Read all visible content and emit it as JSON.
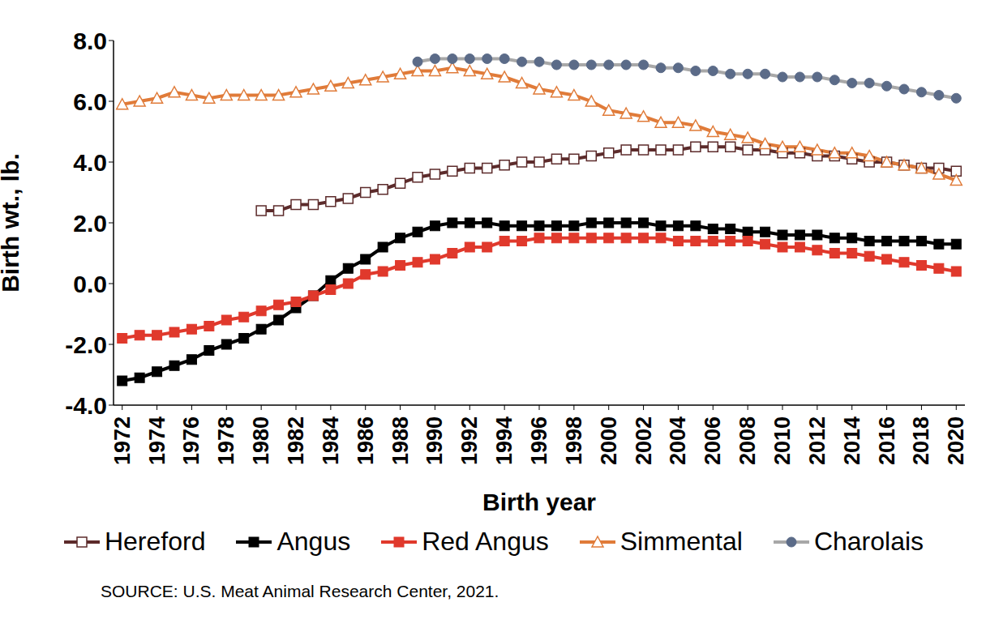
{
  "chart_data": {
    "type": "line",
    "source": "SOURCE: U.S. Meat Animal Research Center, 2021.",
    "x_label": "Birth year",
    "y_label": "Birth wt., lb.",
    "x": [
      1972,
      1973,
      1974,
      1975,
      1976,
      1977,
      1978,
      1979,
      1980,
      1981,
      1982,
      1983,
      1984,
      1985,
      1986,
      1987,
      1988,
      1989,
      1990,
      1991,
      1992,
      1993,
      1994,
      1995,
      1996,
      1997,
      1998,
      1999,
      2000,
      2001,
      2002,
      2003,
      2004,
      2005,
      2006,
      2007,
      2008,
      2009,
      2010,
      2011,
      2012,
      2013,
      2014,
      2015,
      2016,
      2017,
      2018,
      2019,
      2020
    ],
    "xlim": [
      1971.5,
      2020.5
    ],
    "xticks": [
      1972,
      1974,
      1976,
      1978,
      1980,
      1982,
      1984,
      1986,
      1988,
      1990,
      1992,
      1994,
      1996,
      1998,
      2000,
      2002,
      2004,
      2006,
      2008,
      2010,
      2012,
      2014,
      2016,
      2018,
      2020
    ],
    "ylim": [
      -4,
      8
    ],
    "yticks": [
      {
        "value": -4,
        "label": "-4.0"
      },
      {
        "value": -2,
        "label": "-2.0"
      },
      {
        "value": 0,
        "label": "0.0"
      },
      {
        "value": 2,
        "label": "2.0"
      },
      {
        "value": 4,
        "label": "4.0"
      },
      {
        "value": 6,
        "label": "6.0"
      },
      {
        "value": 8,
        "label": "8.0"
      }
    ],
    "grid": false,
    "legend": "bottom",
    "series": [
      {
        "name": "Hereford",
        "color": "#5c2b2b",
        "marker": "square_open",
        "values": [
          null,
          null,
          null,
          null,
          null,
          null,
          null,
          null,
          2.4,
          2.4,
          2.6,
          2.6,
          2.7,
          2.8,
          3.0,
          3.1,
          3.3,
          3.5,
          3.6,
          3.7,
          3.8,
          3.8,
          3.9,
          4.0,
          4.0,
          4.1,
          4.1,
          4.2,
          4.3,
          4.4,
          4.4,
          4.4,
          4.4,
          4.5,
          4.5,
          4.5,
          4.4,
          4.4,
          4.3,
          4.3,
          4.2,
          4.2,
          4.1,
          4.0,
          4.0,
          3.9,
          3.8,
          3.8,
          3.7
        ]
      },
      {
        "name": "Angus",
        "color": "#000000",
        "marker": "square",
        "values": [
          -3.2,
          -3.1,
          -2.9,
          -2.7,
          -2.5,
          -2.2,
          -2.0,
          -1.8,
          -1.5,
          -1.2,
          -0.8,
          -0.4,
          0.1,
          0.5,
          0.8,
          1.2,
          1.5,
          1.7,
          1.9,
          2.0,
          2.0,
          2.0,
          1.9,
          1.9,
          1.9,
          1.9,
          1.9,
          2.0,
          2.0,
          2.0,
          2.0,
          1.9,
          1.9,
          1.9,
          1.8,
          1.8,
          1.7,
          1.7,
          1.6,
          1.6,
          1.6,
          1.5,
          1.5,
          1.4,
          1.4,
          1.4,
          1.4,
          1.3,
          1.3
        ]
      },
      {
        "name": "Red Angus",
        "color": "#e0392c",
        "marker": "square",
        "values": [
          -1.8,
          -1.7,
          -1.7,
          -1.6,
          -1.5,
          -1.4,
          -1.2,
          -1.1,
          -0.9,
          -0.7,
          -0.6,
          -0.4,
          -0.2,
          0.0,
          0.3,
          0.4,
          0.6,
          0.7,
          0.8,
          1.0,
          1.2,
          1.2,
          1.4,
          1.4,
          1.5,
          1.5,
          1.5,
          1.5,
          1.5,
          1.5,
          1.5,
          1.5,
          1.4,
          1.4,
          1.4,
          1.4,
          1.4,
          1.3,
          1.2,
          1.2,
          1.1,
          1.0,
          1.0,
          0.9,
          0.8,
          0.7,
          0.6,
          0.5,
          0.4
        ]
      },
      {
        "name": "Simmental",
        "color": "#e07b39",
        "marker": "triangle_open",
        "values": [
          5.9,
          6.0,
          6.1,
          6.3,
          6.2,
          6.1,
          6.2,
          6.2,
          6.2,
          6.2,
          6.3,
          6.4,
          6.5,
          6.6,
          6.7,
          6.8,
          6.9,
          7.0,
          7.0,
          7.1,
          7.0,
          6.9,
          6.8,
          6.6,
          6.4,
          6.3,
          6.2,
          6.0,
          5.7,
          5.6,
          5.5,
          5.3,
          5.3,
          5.2,
          5.0,
          4.9,
          4.8,
          4.6,
          4.5,
          4.5,
          4.4,
          4.3,
          4.3,
          4.2,
          4.0,
          3.9,
          3.8,
          3.6,
          3.4
        ]
      },
      {
        "name": "Charolais",
        "color": "#a8a8a8",
        "marker": "circle",
        "values": [
          null,
          null,
          null,
          null,
          null,
          null,
          null,
          null,
          null,
          null,
          null,
          null,
          null,
          null,
          null,
          null,
          null,
          7.3,
          7.4,
          7.4,
          7.4,
          7.4,
          7.4,
          7.3,
          7.3,
          7.2,
          7.2,
          7.2,
          7.2,
          7.2,
          7.2,
          7.1,
          7.1,
          7.0,
          7.0,
          6.9,
          6.9,
          6.9,
          6.8,
          6.8,
          6.8,
          6.7,
          6.6,
          6.6,
          6.5,
          6.4,
          6.3,
          6.2,
          6.1
        ]
      }
    ]
  }
}
